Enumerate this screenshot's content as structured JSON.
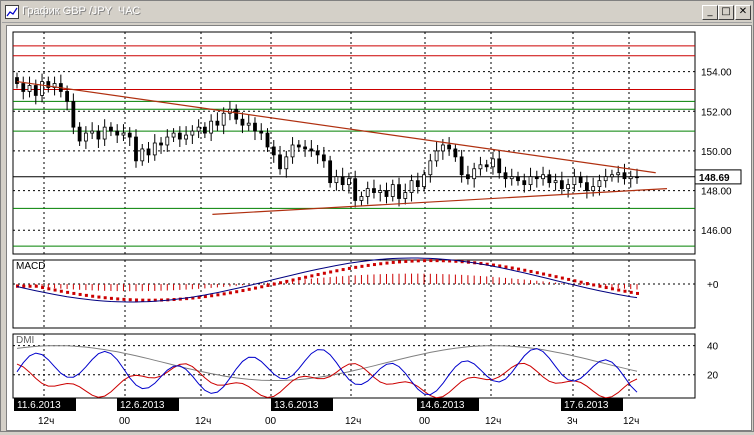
{
  "window": {
    "title": "График GBP /JPY  ЧАС",
    "icon": "chart-icon",
    "buttons": {
      "minimize": "_",
      "maximize": "□",
      "close": "✕"
    }
  },
  "chart_data": {
    "type": "candlestick",
    "symbol": "GBP/JPY",
    "timeframe": "ЧАС",
    "price_axis": {
      "range": [
        144.8,
        156.0
      ],
      "ticks": [
        "154.00",
        "152.00",
        "150.00",
        "148.00",
        "146.00"
      ],
      "current_price": "148.69"
    },
    "date_labels": [
      "11.6.2013",
      "12.6.2013",
      "13.6.2013",
      "14.6.2013",
      "17.6.2013"
    ],
    "time_labels": [
      "12ч",
      "00",
      "12ч",
      "00",
      "12ч",
      "00",
      "12ч",
      "3ч",
      "12ч"
    ],
    "horizontal_levels": [
      {
        "price": 155.3,
        "color": "#cc0000"
      },
      {
        "price": 154.8,
        "color": "#cc0000"
      },
      {
        "price": 153.1,
        "color": "#cc0000"
      },
      {
        "price": 152.5,
        "color": "#008000"
      },
      {
        "price": 152.1,
        "color": "#008000"
      },
      {
        "price": 151.0,
        "color": "#008000"
      },
      {
        "price": 148.7,
        "color": "#000000"
      },
      {
        "price": 147.1,
        "color": "#008000"
      },
      {
        "price": 145.2,
        "color": "#008000"
      }
    ],
    "trendlines": [
      {
        "from": [
          0,
          153.5
        ],
        "to": [
          162,
          148.9
        ],
        "color": "#b03010"
      },
      {
        "from": [
          52,
          146.8
        ],
        "to": [
          167,
          148.1
        ],
        "color": "#b03010"
      }
    ],
    "candles_close": [
      153.4,
      153.0,
      153.3,
      152.8,
      153.5,
      153.2,
      153.4,
      153.0,
      152.5,
      151.2,
      150.5,
      150.9,
      151.0,
      150.6,
      151.2,
      151.0,
      150.8,
      150.9,
      150.7,
      149.5,
      150.1,
      149.8,
      150.4,
      150.3,
      150.7,
      150.9,
      150.6,
      150.8,
      151.0,
      151.2,
      150.9,
      151.5,
      151.3,
      151.9,
      152.1,
      151.6,
      151.3,
      151.4,
      151.0,
      150.9,
      150.2,
      149.8,
      149.1,
      149.7,
      150.3,
      150.2,
      150.1,
      150.0,
      149.8,
      149.5,
      148.4,
      148.7,
      148.3,
      148.6,
      147.5,
      147.7,
      148.1,
      147.9,
      148.0,
      147.7,
      148.3,
      147.6,
      147.9,
      148.5,
      148.2,
      148.8,
      149.5,
      150.0,
      150.3,
      150.1,
      149.7,
      148.8,
      148.6,
      149.1,
      149.3,
      149.2,
      149.6,
      148.9,
      148.6,
      148.7,
      148.5,
      148.3,
      148.7,
      148.6,
      148.8,
      148.4,
      148.5,
      148.1,
      148.3,
      148.7,
      148.4,
      148.0,
      148.2,
      148.5,
      148.7,
      148.8,
      148.9,
      148.6,
      148.7,
      148.69
    ],
    "macd": {
      "label": "MACD",
      "zero_label": "+0",
      "line_color": "#000080",
      "signal_color": "#cc0000"
    },
    "dmi": {
      "label": "DMI",
      "ticks": [
        "40",
        "20"
      ],
      "plus_color": "#0000cc",
      "minus_color": "#cc0000",
      "adx_color": "#808080"
    }
  }
}
